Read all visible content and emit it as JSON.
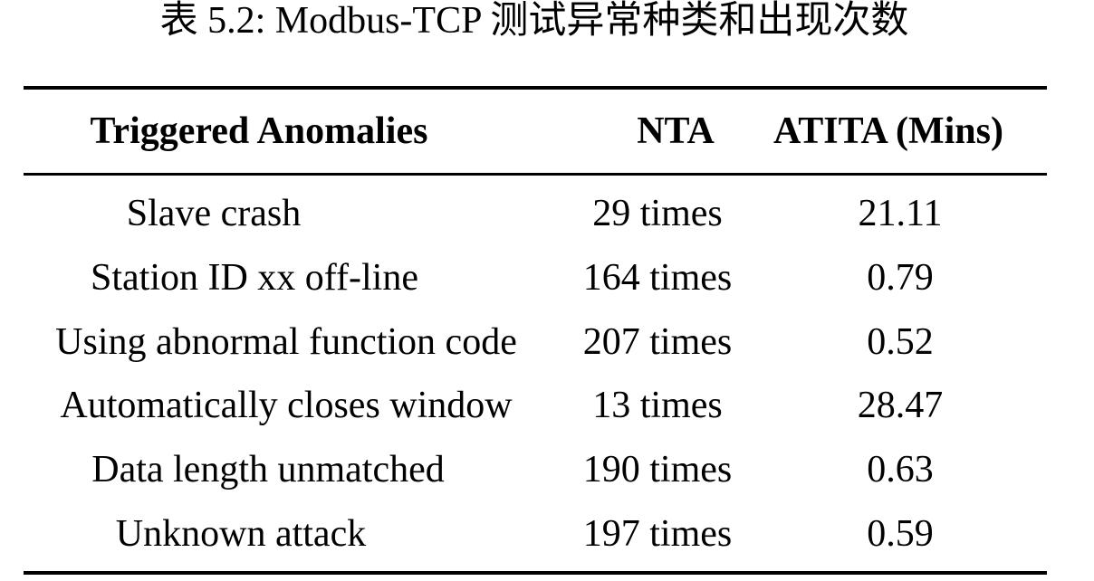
{
  "caption": "表 5.2: Modbus-TCP 测试异常种类和出现次数",
  "table": {
    "headers": [
      "Triggered Anomalies",
      "NTA",
      "ATITA (Mins)"
    ],
    "rows": [
      [
        "Slave crash",
        "29 times",
        "21.11"
      ],
      [
        "Station ID xx off-line",
        "164 times",
        "0.79"
      ],
      [
        "Using abnormal function code",
        "207 times",
        "0.52"
      ],
      [
        "Automatically closes window",
        "13 times",
        "28.47"
      ],
      [
        "Data length unmatched",
        "190 times",
        "0.63"
      ],
      [
        "Unknown attack",
        "197 times",
        "0.59"
      ]
    ]
  }
}
